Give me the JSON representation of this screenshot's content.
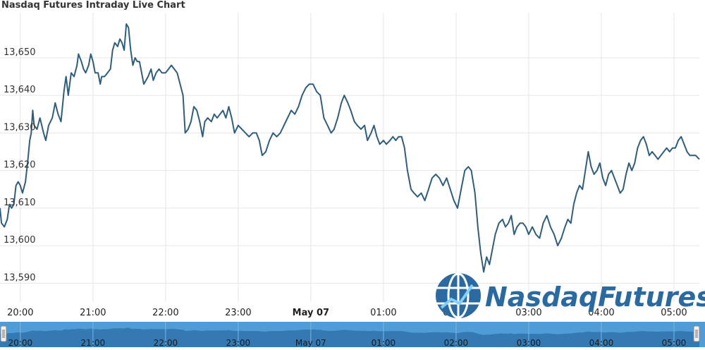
{
  "chart_data": {
    "type": "line",
    "title": "Nasdaq Futures Intraday Live Chart",
    "ylim": [
      13585,
      13662
    ],
    "y_ticks": [
      13590,
      13600,
      13610,
      13620,
      13630,
      13640,
      13650
    ],
    "y_tick_labels": [
      "13,590",
      "13,600",
      "13,610",
      "13,620",
      "13,630",
      "13,640",
      "13,650"
    ],
    "x_ticks": [
      "20:00",
      "21:00",
      "22:00",
      "23:00",
      "May 07",
      "01:00",
      "02:00",
      "03:00",
      "04:00",
      "05:00"
    ],
    "x_tick_hours": [
      0,
      1,
      2,
      3,
      4,
      5,
      6,
      7,
      8,
      9
    ],
    "x_range_hours": [
      -0.28,
      9.35
    ],
    "grid": true,
    "series": [
      {
        "color": "#2f5d7c",
        "points": [
          [
            -0.28,
            13610
          ],
          [
            -0.26,
            13606
          ],
          [
            -0.22,
            13605
          ],
          [
            -0.18,
            13607
          ],
          [
            -0.15,
            13611
          ],
          [
            -0.12,
            13610
          ],
          [
            -0.09,
            13611
          ],
          [
            -0.06,
            13616
          ],
          [
            -0.03,
            13617
          ],
          [
            0.0,
            13616
          ],
          [
            0.03,
            13614
          ],
          [
            0.07,
            13617
          ],
          [
            0.1,
            13622
          ],
          [
            0.13,
            13628
          ],
          [
            0.15,
            13630
          ],
          [
            0.17,
            13636
          ],
          [
            0.19,
            13632
          ],
          [
            0.23,
            13631
          ],
          [
            0.27,
            13634
          ],
          [
            0.32,
            13630
          ],
          [
            0.35,
            13628
          ],
          [
            0.39,
            13632
          ],
          [
            0.44,
            13634
          ],
          [
            0.48,
            13638
          ],
          [
            0.52,
            13635
          ],
          [
            0.56,
            13633
          ],
          [
            0.6,
            13641
          ],
          [
            0.63,
            13645
          ],
          [
            0.66,
            13640
          ],
          [
            0.7,
            13646
          ],
          [
            0.74,
            13645
          ],
          [
            0.78,
            13648
          ],
          [
            0.8,
            13651
          ],
          [
            0.84,
            13649
          ],
          [
            0.87,
            13647
          ],
          [
            0.9,
            13646
          ],
          [
            0.94,
            13648
          ],
          [
            0.97,
            13651
          ],
          [
            1.0,
            13649
          ],
          [
            1.03,
            13646
          ],
          [
            1.07,
            13646
          ],
          [
            1.1,
            13643
          ],
          [
            1.12,
            13645
          ],
          [
            1.16,
            13645
          ],
          [
            1.2,
            13646
          ],
          [
            1.24,
            13647
          ],
          [
            1.27,
            13652
          ],
          [
            1.3,
            13654
          ],
          [
            1.34,
            13653
          ],
          [
            1.37,
            13655
          ],
          [
            1.4,
            13654
          ],
          [
            1.43,
            13652
          ],
          [
            1.46,
            13659
          ],
          [
            1.49,
            13658
          ],
          [
            1.52,
            13652
          ],
          [
            1.55,
            13648
          ],
          [
            1.58,
            13650
          ],
          [
            1.61,
            13649
          ],
          [
            1.64,
            13649
          ],
          [
            1.67,
            13646
          ],
          [
            1.7,
            13643
          ],
          [
            1.73,
            13644
          ],
          [
            1.76,
            13645
          ],
          [
            1.8,
            13647
          ],
          [
            1.83,
            13644
          ],
          [
            1.87,
            13646
          ],
          [
            1.91,
            13647
          ],
          [
            1.95,
            13646
          ],
          [
            2.0,
            13646
          ],
          [
            2.04,
            13647
          ],
          [
            2.08,
            13648
          ],
          [
            2.12,
            13647
          ],
          [
            2.16,
            13646
          ],
          [
            2.2,
            13643
          ],
          [
            2.24,
            13640
          ],
          [
            2.27,
            13630
          ],
          [
            2.31,
            13631
          ],
          [
            2.35,
            13633
          ],
          [
            2.39,
            13637
          ],
          [
            2.43,
            13636
          ],
          [
            2.47,
            13633
          ],
          [
            2.51,
            13629
          ],
          [
            2.54,
            13633
          ],
          [
            2.58,
            13634
          ],
          [
            2.63,
            13633
          ],
          [
            2.67,
            13635
          ],
          [
            2.71,
            13634
          ],
          [
            2.75,
            13635
          ],
          [
            2.79,
            13636
          ],
          [
            2.83,
            13634
          ],
          [
            2.87,
            13637
          ],
          [
            2.91,
            13634
          ],
          [
            2.95,
            13630
          ],
          [
            3.0,
            13632
          ],
          [
            3.05,
            13631
          ],
          [
            3.1,
            13630
          ],
          [
            3.15,
            13629
          ],
          [
            3.2,
            13630
          ],
          [
            3.25,
            13630
          ],
          [
            3.29,
            13628
          ],
          [
            3.33,
            13624
          ],
          [
            3.38,
            13625
          ],
          [
            3.43,
            13628
          ],
          [
            3.48,
            13630
          ],
          [
            3.53,
            13629
          ],
          [
            3.58,
            13630
          ],
          [
            3.63,
            13632
          ],
          [
            3.68,
            13634
          ],
          [
            3.73,
            13636
          ],
          [
            3.78,
            13635
          ],
          [
            3.83,
            13637
          ],
          [
            3.88,
            13640
          ],
          [
            3.93,
            13642
          ],
          [
            3.98,
            13643
          ],
          [
            4.03,
            13643
          ],
          [
            4.08,
            13641
          ],
          [
            4.13,
            13640
          ],
          [
            4.18,
            13634
          ],
          [
            4.23,
            13632
          ],
          [
            4.28,
            13630
          ],
          [
            4.32,
            13631
          ],
          [
            4.37,
            13634
          ],
          [
            4.42,
            13638
          ],
          [
            4.46,
            13640
          ],
          [
            4.51,
            13638
          ],
          [
            4.55,
            13636
          ],
          [
            4.6,
            13633
          ],
          [
            4.64,
            13632
          ],
          [
            4.69,
            13631
          ],
          [
            4.74,
            13632
          ],
          [
            4.78,
            13628
          ],
          [
            4.83,
            13630
          ],
          [
            4.87,
            13632
          ],
          [
            4.91,
            13629
          ],
          [
            4.95,
            13627
          ],
          [
            5.0,
            13628
          ],
          [
            5.04,
            13627
          ],
          [
            5.09,
            13628
          ],
          [
            5.13,
            13629
          ],
          [
            5.17,
            13628
          ],
          [
            5.21,
            13629
          ],
          [
            5.25,
            13629
          ],
          [
            5.29,
            13626
          ],
          [
            5.33,
            13620
          ],
          [
            5.38,
            13615
          ],
          [
            5.42,
            13614
          ],
          [
            5.47,
            13613
          ],
          [
            5.52,
            13614
          ],
          [
            5.57,
            13612
          ],
          [
            5.62,
            13615
          ],
          [
            5.67,
            13618
          ],
          [
            5.72,
            13619
          ],
          [
            5.77,
            13618
          ],
          [
            5.82,
            13616
          ],
          [
            5.87,
            13618
          ],
          [
            5.92,
            13615
          ],
          [
            5.97,
            13612
          ],
          [
            6.02,
            13610
          ],
          [
            6.07,
            13615
          ],
          [
            6.12,
            13620
          ],
          [
            6.17,
            13621
          ],
          [
            6.21,
            13620
          ],
          [
            6.26,
            13614
          ],
          [
            6.3,
            13605
          ],
          [
            6.34,
            13598
          ],
          [
            6.38,
            13593
          ],
          [
            6.42,
            13597
          ],
          [
            6.46,
            13595
          ],
          [
            6.5,
            13599
          ],
          [
            6.54,
            13603
          ],
          [
            6.59,
            13606
          ],
          [
            6.64,
            13607
          ],
          [
            6.68,
            13605
          ],
          [
            6.72,
            13606
          ],
          [
            6.76,
            13608
          ],
          [
            6.8,
            13603
          ],
          [
            6.84,
            13605
          ],
          [
            6.88,
            13606
          ],
          [
            6.92,
            13606
          ],
          [
            6.96,
            13605
          ],
          [
            7.0,
            13603
          ],
          [
            7.05,
            13605
          ],
          [
            7.1,
            13603
          ],
          [
            7.15,
            13602
          ],
          [
            7.2,
            13606
          ],
          [
            7.25,
            13608
          ],
          [
            7.3,
            13605
          ],
          [
            7.35,
            13603
          ],
          [
            7.4,
            13600
          ],
          [
            7.45,
            13602
          ],
          [
            7.5,
            13605
          ],
          [
            7.54,
            13607
          ],
          [
            7.58,
            13606
          ],
          [
            7.62,
            13611
          ],
          [
            7.66,
            13614
          ],
          [
            7.7,
            13616
          ],
          [
            7.74,
            13615
          ],
          [
            7.78,
            13620
          ],
          [
            7.82,
            13625
          ],
          [
            7.86,
            13621
          ],
          [
            7.9,
            13619
          ],
          [
            7.94,
            13620
          ],
          [
            7.98,
            13622
          ],
          [
            8.02,
            13618
          ],
          [
            8.06,
            13616
          ],
          [
            8.1,
            13619
          ],
          [
            8.14,
            13620
          ],
          [
            8.18,
            13618
          ],
          [
            8.22,
            13616
          ],
          [
            8.26,
            13614
          ],
          [
            8.3,
            13615
          ],
          [
            8.34,
            13619
          ],
          [
            8.38,
            13622
          ],
          [
            8.42,
            13620
          ],
          [
            8.46,
            13622
          ],
          [
            8.5,
            13626
          ],
          [
            8.54,
            13628
          ],
          [
            8.58,
            13629
          ],
          [
            8.62,
            13627
          ],
          [
            8.66,
            13624
          ],
          [
            8.7,
            13625
          ],
          [
            8.74,
            13624
          ],
          [
            8.78,
            13623
          ],
          [
            8.82,
            13624
          ],
          [
            8.86,
            13625
          ],
          [
            8.9,
            13626
          ],
          [
            8.94,
            13625
          ],
          [
            8.98,
            13626
          ],
          [
            9.02,
            13626
          ],
          [
            9.06,
            13628
          ],
          [
            9.1,
            13629
          ],
          [
            9.14,
            13627
          ],
          [
            9.18,
            13625
          ],
          [
            9.22,
            13624
          ],
          [
            9.26,
            13624
          ],
          [
            9.3,
            13624
          ],
          [
            9.35,
            13623
          ]
        ]
      }
    ]
  },
  "navigator": {
    "labels": [
      "20:00",
      "21:00",
      "22:00",
      "23:00",
      "May 07",
      "01:00",
      "02:00",
      "03:00",
      "04:00",
      "05:00"
    ]
  },
  "logo": {
    "text": "NasdaqFutures",
    "mark": "globe"
  },
  "colors": {
    "line": "#2f5d7c",
    "grid": "#e6e6e6",
    "navigator_bg": "#4f9cd6",
    "navigator_fill": "#2b6ea6",
    "logo": "#2b6aa0"
  }
}
